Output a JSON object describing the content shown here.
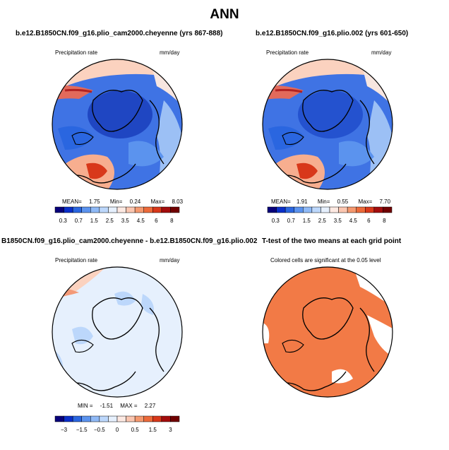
{
  "main_title": "ANN",
  "panels": [
    {
      "title": "b.e12.B1850CN.f09_g16.plio_cam2000.cheyenne (yrs 867-888)",
      "left_label": "Precipitation rate",
      "right_label": "mm/day",
      "stats": {
        "mean_label": "MEAN=",
        "mean": "1.75",
        "min_label": "Min=",
        "min": "0.24",
        "max_label": "Max=",
        "max": "8.03"
      },
      "colorbar": {
        "colors": [
          "#08007a",
          "#0a2fc9",
          "#2a66e0",
          "#5b93ee",
          "#8fb9f6",
          "#bcd7fb",
          "#e6f0fd",
          "#fde9e2",
          "#fbc6b0",
          "#f5996f",
          "#ec6a3a",
          "#d8381a",
          "#a30c0c",
          "#700000"
        ],
        "labels": [
          "0.3",
          "0.7",
          "1.5",
          "2.5",
          "3.5",
          "4.5",
          "6",
          "8"
        ]
      }
    },
    {
      "title": "b.e12.B1850CN.f09_g16.plio.002 (yrs 601-650)",
      "left_label": "Precipitation rate",
      "right_label": "mm/day",
      "stats": {
        "mean_label": "MEAN=",
        "mean": "1.91",
        "min_label": "Min=",
        "min": "0.55",
        "max_label": "Max=",
        "max": "7.70"
      },
      "colorbar": {
        "colors": [
          "#08007a",
          "#0a2fc9",
          "#2a66e0",
          "#5b93ee",
          "#8fb9f6",
          "#bcd7fb",
          "#e6f0fd",
          "#fde9e2",
          "#fbc6b0",
          "#f5996f",
          "#ec6a3a",
          "#d8381a",
          "#a30c0c",
          "#700000"
        ],
        "labels": [
          "0.3",
          "0.7",
          "1.5",
          "2.5",
          "3.5",
          "4.5",
          "6",
          "8"
        ]
      }
    },
    {
      "title": "B1850CN.f09_g16.plio_cam2000.cheyenne - b.e12.B1850CN.f09_g16.plio.002",
      "left_label": "Precipitation rate",
      "right_label": "mm/day",
      "stats": {
        "min_label": "MIN =",
        "min": "-1.51",
        "max_label": "MAX =",
        "max": "2.27"
      },
      "colorbar": {
        "colors": [
          "#08007a",
          "#0a2fc9",
          "#2a66e0",
          "#5b93ee",
          "#8fb9f6",
          "#bcd7fb",
          "#e6f0fd",
          "#fde9e2",
          "#fbc6b0",
          "#f5996f",
          "#ec6a3a",
          "#d8381a",
          "#a30c0c",
          "#700000"
        ],
        "labels": [
          "−3",
          "−1.5",
          "−0.5",
          "0",
          "0.5",
          "1.5",
          "3"
        ]
      }
    },
    {
      "title": "T-test of the two means at each grid point",
      "note": "Colored cells are significant at the 0.05 level"
    }
  ],
  "colors": {
    "ocean_blue": "#3f73e4",
    "deep_blue": "#2452cf",
    "light_blue": "#9cc0f5",
    "pale": "#e6f0fd",
    "warm": "#f39a78",
    "orange": "#f27a46"
  },
  "chart_data": [
    {
      "type": "heatmap",
      "title": "b.e12.B1850CN.f09_g16.plio_cam2000.cheyenne (yrs 867-888)",
      "variable": "Precipitation rate",
      "units": "mm/day",
      "mean": 1.75,
      "min": 0.24,
      "max": 8.03,
      "contour_levels": [
        0.3,
        0.7,
        1.5,
        2.5,
        3.5,
        4.5,
        6,
        8
      ]
    },
    {
      "type": "heatmap",
      "title": "b.e12.B1850CN.f09_g16.plio.002 (yrs 601-650)",
      "variable": "Precipitation rate",
      "units": "mm/day",
      "mean": 1.91,
      "min": 0.55,
      "max": 7.7,
      "contour_levels": [
        0.3,
        0.7,
        1.5,
        2.5,
        3.5,
        4.5,
        6,
        8
      ]
    },
    {
      "type": "heatmap",
      "title": "B1850CN.f09_g16.plio_cam2000.cheyenne - b.e12.B1850CN.f09_g16.plio.002",
      "variable": "Precipitation rate",
      "units": "mm/day",
      "min": -1.51,
      "max": 2.27,
      "contour_levels": [
        -3,
        -1.5,
        -0.5,
        0,
        0.5,
        1.5,
        3
      ]
    },
    {
      "type": "heatmap",
      "title": "T-test of the two means at each grid point",
      "annotation": "Colored cells are significant at the 0.05 level"
    }
  ]
}
